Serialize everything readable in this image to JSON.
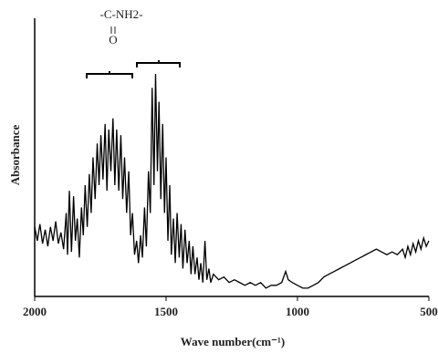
{
  "chart_data": {
    "type": "line",
    "x_label": "Wave number(cm⁻¹)",
    "y_label": "Absorbance",
    "annotations": [
      "-C-NH2-",
      "O"
    ],
    "xlim": [
      2000,
      500
    ],
    "xticks": [
      2000,
      1500,
      1000,
      500
    ],
    "ylim": [
      0,
      1
    ],
    "color": "#000000",
    "x": [
      2000,
      1990,
      1980,
      1970,
      1960,
      1950,
      1940,
      1930,
      1920,
      1910,
      1900,
      1890,
      1880,
      1875,
      1868,
      1860,
      1852,
      1845,
      1838,
      1830,
      1822,
      1815,
      1808,
      1800,
      1792,
      1785,
      1778,
      1770,
      1762,
      1755,
      1748,
      1740,
      1732,
      1725,
      1718,
      1710,
      1702,
      1695,
      1688,
      1680,
      1672,
      1665,
      1658,
      1650,
      1642,
      1635,
      1628,
      1620,
      1612,
      1605,
      1597,
      1590,
      1582,
      1575,
      1567,
      1560,
      1553,
      1546,
      1540,
      1533,
      1527,
      1520,
      1513,
      1506,
      1500,
      1493,
      1486,
      1480,
      1472,
      1465,
      1458,
      1450,
      1443,
      1436,
      1428,
      1420,
      1412,
      1405,
      1398,
      1390,
      1382,
      1375,
      1368,
      1360,
      1352,
      1345,
      1337,
      1330,
      1320,
      1300,
      1280,
      1260,
      1240,
      1220,
      1200,
      1180,
      1160,
      1140,
      1120,
      1100,
      1080,
      1060,
      1045,
      1035,
      1020,
      1000,
      980,
      960,
      940,
      920,
      900,
      880,
      860,
      840,
      820,
      800,
      780,
      760,
      740,
      720,
      700,
      680,
      660,
      640,
      620,
      600,
      590,
      580,
      570,
      560,
      550,
      540,
      530,
      520,
      510,
      500
    ],
    "values": [
      0.25,
      0.2,
      0.26,
      0.19,
      0.24,
      0.18,
      0.25,
      0.2,
      0.27,
      0.19,
      0.23,
      0.17,
      0.3,
      0.15,
      0.38,
      0.16,
      0.36,
      0.2,
      0.28,
      0.14,
      0.32,
      0.22,
      0.4,
      0.25,
      0.44,
      0.3,
      0.5,
      0.35,
      0.55,
      0.4,
      0.58,
      0.42,
      0.62,
      0.38,
      0.6,
      0.45,
      0.64,
      0.4,
      0.6,
      0.38,
      0.58,
      0.35,
      0.5,
      0.3,
      0.45,
      0.22,
      0.3,
      0.15,
      0.2,
      0.12,
      0.22,
      0.14,
      0.32,
      0.18,
      0.45,
      0.3,
      0.75,
      0.4,
      0.8,
      0.45,
      0.7,
      0.35,
      0.62,
      0.3,
      0.5,
      0.2,
      0.4,
      0.15,
      0.28,
      0.12,
      0.3,
      0.14,
      0.26,
      0.1,
      0.24,
      0.12,
      0.2,
      0.08,
      0.18,
      0.08,
      0.14,
      0.06,
      0.12,
      0.05,
      0.2,
      0.06,
      0.1,
      0.05,
      0.08,
      0.06,
      0.07,
      0.05,
      0.06,
      0.05,
      0.04,
      0.05,
      0.04,
      0.05,
      0.03,
      0.04,
      0.04,
      0.05,
      0.09,
      0.06,
      0.05,
      0.04,
      0.03,
      0.03,
      0.04,
      0.05,
      0.07,
      0.08,
      0.09,
      0.1,
      0.11,
      0.12,
      0.13,
      0.14,
      0.15,
      0.16,
      0.17,
      0.16,
      0.15,
      0.16,
      0.15,
      0.17,
      0.14,
      0.18,
      0.15,
      0.19,
      0.16,
      0.2,
      0.17,
      0.21,
      0.18,
      0.2
    ]
  }
}
